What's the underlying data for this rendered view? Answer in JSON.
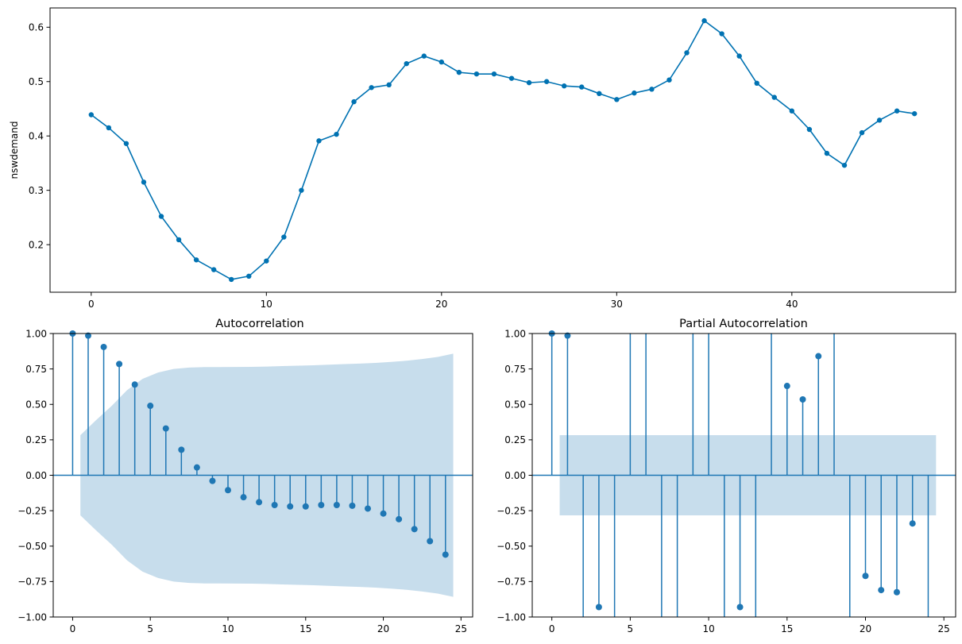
{
  "colors": {
    "series": "#0072b2",
    "stem": "#1f77b4",
    "band": "#1f77b4"
  },
  "chart_data": [
    {
      "type": "line",
      "title": "",
      "xlabel": "",
      "ylabel": "nswdemand",
      "xlim": [
        -2.35,
        49.35
      ],
      "ylim": [
        0.1125,
        0.6355
      ],
      "xticks": [
        0,
        10,
        20,
        30,
        40
      ],
      "yticks": [
        0.2,
        0.3,
        0.4,
        0.5,
        0.6
      ],
      "ytick_labels": [
        "0.2",
        "0.3",
        "0.4",
        "0.5",
        "0.6"
      ],
      "grid": false,
      "markers": true,
      "x": [
        0,
        1,
        2,
        3,
        4,
        5,
        6,
        7,
        8,
        9,
        10,
        11,
        12,
        13,
        14,
        15,
        16,
        17,
        18,
        19,
        20,
        21,
        22,
        23,
        24,
        25,
        26,
        27,
        28,
        29,
        30,
        31,
        32,
        33,
        34,
        35,
        36,
        37,
        38,
        39,
        40,
        41,
        42,
        43,
        44,
        45,
        46,
        47
      ],
      "y": [
        0.439,
        0.415,
        0.386,
        0.315,
        0.252,
        0.209,
        0.172,
        0.154,
        0.136,
        0.142,
        0.17,
        0.214,
        0.3,
        0.391,
        0.403,
        0.463,
        0.489,
        0.494,
        0.533,
        0.547,
        0.536,
        0.517,
        0.514,
        0.514,
        0.506,
        0.498,
        0.5,
        0.492,
        0.49,
        0.478,
        0.467,
        0.479,
        0.486,
        0.503,
        0.553,
        0.612,
        0.588,
        0.547,
        0.497,
        0.471,
        0.446,
        0.412,
        0.368,
        0.346,
        0.406,
        0.429,
        0.446,
        0.441
      ]
    },
    {
      "type": "stem",
      "title": "Autocorrelation",
      "xlabel": "",
      "ylabel": "",
      "xlim": [
        -1.25,
        25.75
      ],
      "ylim": [
        -1.0,
        1.0
      ],
      "xticks": [
        0,
        5,
        10,
        15,
        20,
        25
      ],
      "yticks": [
        -1.0,
        -0.75,
        -0.5,
        -0.25,
        0.0,
        0.25,
        0.5,
        0.75,
        1.0
      ],
      "ytick_labels": [
        "−1.00",
        "−0.75",
        "−0.50",
        "−0.25",
        "0.00",
        "0.25",
        "0.50",
        "0.75",
        "1.00"
      ],
      "grid": false,
      "lags": [
        0,
        1,
        2,
        3,
        4,
        5,
        6,
        7,
        8,
        9,
        10,
        11,
        12,
        13,
        14,
        15,
        16,
        17,
        18,
        19,
        20,
        21,
        22,
        23,
        24
      ],
      "values": [
        1.0,
        0.985,
        0.905,
        0.785,
        0.64,
        0.49,
        0.33,
        0.18,
        0.055,
        -0.04,
        -0.105,
        -0.155,
        -0.19,
        -0.21,
        -0.22,
        -0.22,
        -0.21,
        -0.21,
        -0.215,
        -0.235,
        -0.27,
        -0.31,
        -0.38,
        -0.465,
        -0.56
      ],
      "confint_x": [
        0.5,
        1.5,
        2.5,
        3.5,
        4.5,
        5.5,
        6.5,
        7.5,
        8.5,
        9.5,
        10.5,
        11.5,
        12.5,
        13.5,
        14.5,
        15.5,
        16.5,
        17.5,
        18.5,
        19.5,
        20.5,
        21.5,
        22.5,
        23.5,
        24.5
      ],
      "confint_upper": [
        0.283,
        0.388,
        0.488,
        0.6,
        0.68,
        0.725,
        0.75,
        0.76,
        0.763,
        0.763,
        0.764,
        0.765,
        0.767,
        0.77,
        0.773,
        0.776,
        0.78,
        0.784,
        0.788,
        0.793,
        0.8,
        0.808,
        0.82,
        0.835,
        0.858
      ],
      "confint_lower": [
        -0.283,
        -0.388,
        -0.488,
        -0.6,
        -0.68,
        -0.725,
        -0.75,
        -0.76,
        -0.763,
        -0.763,
        -0.764,
        -0.765,
        -0.767,
        -0.77,
        -0.773,
        -0.776,
        -0.78,
        -0.784,
        -0.788,
        -0.793,
        -0.8,
        -0.808,
        -0.82,
        -0.835,
        -0.858
      ]
    },
    {
      "type": "stem",
      "title": "Partial Autocorrelation",
      "xlabel": "",
      "ylabel": "",
      "xlim": [
        -1.25,
        25.75
      ],
      "ylim": [
        -1.0,
        1.0
      ],
      "xticks": [
        0,
        5,
        10,
        15,
        20,
        25
      ],
      "yticks": [
        -1.0,
        -0.75,
        -0.5,
        -0.25,
        0.0,
        0.25,
        0.5,
        0.75,
        1.0
      ],
      "ytick_labels": [
        "−1.00",
        "−0.75",
        "−0.50",
        "−0.25",
        "0.00",
        "0.25",
        "0.50",
        "0.75",
        "1.00"
      ],
      "grid": false,
      "note_out_of_range": "values beyond ±1 are clipped at the axis limit",
      "lags": [
        0,
        1,
        2,
        3,
        4,
        5,
        6,
        7,
        8,
        9,
        10,
        11,
        12,
        13,
        14,
        15,
        16,
        17,
        18,
        19,
        20,
        21,
        22,
        23,
        24
      ],
      "values": [
        1.0,
        0.985,
        -3.0,
        -0.93,
        -3.0,
        3.0,
        3.0,
        -3.0,
        -3.0,
        3.0,
        3.0,
        -3.0,
        -0.93,
        -3.0,
        3.0,
        0.63,
        0.535,
        0.84,
        3.0,
        -3.0,
        -0.71,
        -0.81,
        -0.825,
        -0.34,
        -3.0
      ],
      "confint_x": [
        0.5,
        24.5
      ],
      "confint_upper": [
        0.283,
        0.283
      ],
      "confint_lower": [
        -0.283,
        -0.283
      ]
    }
  ]
}
